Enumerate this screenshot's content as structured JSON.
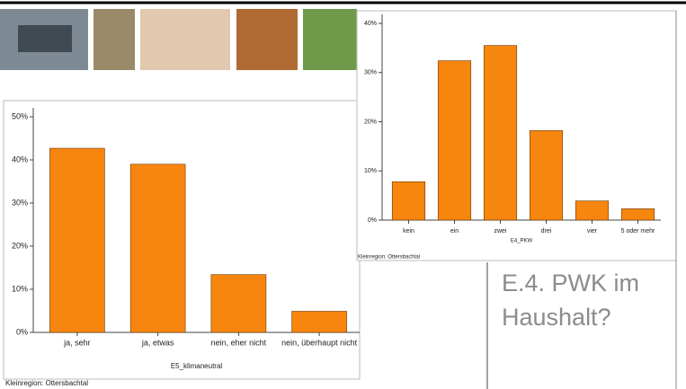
{
  "slide": {
    "heading": "E.4. PWK im Haushalt?"
  },
  "chart_data": [
    {
      "type": "bar",
      "xlabel": "E5_klimaneutral",
      "note": "Kleinregion: Ottersbachtal",
      "categories": [
        "ja, sehr",
        "ja, etwas",
        "nein, eher nicht",
        "nein, überhaupt nicht"
      ],
      "values": [
        42.7,
        39,
        13.4,
        4.9
      ],
      "color": "#f7860f",
      "ylim": [
        0,
        50
      ],
      "yticks": [
        {
          "value": 0,
          "label": "0%"
        },
        {
          "value": 10,
          "label": "10%"
        },
        {
          "value": 20,
          "label": "20%"
        },
        {
          "value": 30,
          "label": "30%"
        },
        {
          "value": 40,
          "label": "40%"
        },
        {
          "value": 50,
          "label": "50%"
        }
      ]
    },
    {
      "type": "bar",
      "xlabel": "E4_PKW",
      "note": "Kleinregion: Ottersbachtal",
      "categories": [
        "kein",
        "ein",
        "zwei",
        "drei",
        "vier",
        "5 oder mehr"
      ],
      "values": [
        7.8,
        32.4,
        35.5,
        18.2,
        3.9,
        2.3
      ],
      "color": "#f7860f",
      "ylim": [
        0,
        40
      ],
      "yticks": [
        {
          "value": 0,
          "label": "0%"
        },
        {
          "value": 10,
          "label": "10%"
        },
        {
          "value": 20,
          "label": "20%"
        },
        {
          "value": 30,
          "label": "30%"
        },
        {
          "value": 40,
          "label": "40%"
        }
      ]
    }
  ]
}
